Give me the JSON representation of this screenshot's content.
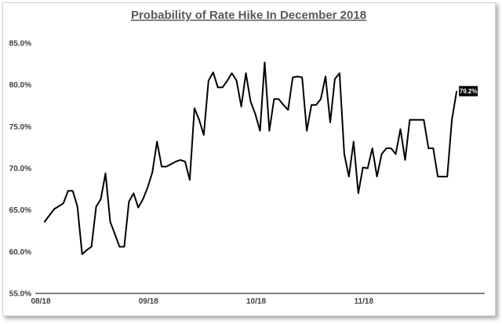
{
  "chart_data": {
    "type": "line",
    "title": "Probability of Rate Hike In December 2018",
    "xlabel": "",
    "ylabel": "",
    "ylim": [
      55.0,
      85.0
    ],
    "yticks": [
      "55.0%",
      "60.0%",
      "65.0%",
      "70.0%",
      "75.0%",
      "80.0%",
      "85.0%"
    ],
    "ytick_values": [
      55,
      60,
      65,
      70,
      75,
      80,
      85
    ],
    "xticks": [
      "08/18",
      "09/18",
      "10/18",
      "11/18"
    ],
    "xtick_positions": [
      0,
      23,
      46,
      69
    ],
    "xlim": [
      0,
      93
    ],
    "grid": false,
    "legend": "none",
    "series": [
      {
        "color": "#000000",
        "x": [
          2,
          4,
          6,
          7,
          8,
          9,
          10,
          11,
          12,
          13,
          14,
          15,
          16,
          17,
          18,
          19,
          20,
          21,
          22,
          23,
          24,
          25,
          26,
          27,
          28,
          29,
          30,
          31,
          32,
          33,
          34,
          35,
          36,
          37,
          38,
          39,
          40,
          41,
          42,
          43,
          44,
          45,
          46,
          47,
          48,
          49,
          50,
          51,
          52,
          53,
          54,
          55,
          56,
          57,
          58,
          59,
          60,
          61,
          62,
          63,
          64,
          65,
          66,
          67,
          68,
          69,
          70,
          71,
          72,
          73,
          74,
          75,
          76,
          77,
          78,
          79,
          80,
          81,
          82,
          83,
          84,
          85,
          86,
          87,
          88,
          89,
          90
        ],
        "y": [
          63.6,
          65.1,
          65.8,
          67.3,
          67.3,
          65.4,
          59.7,
          60.2,
          60.6,
          65.4,
          66.3,
          69.4,
          63.6,
          62.1,
          60.6,
          60.6,
          66.0,
          67.0,
          65.3,
          66.3,
          67.7,
          69.5,
          73.2,
          70.2,
          70.2,
          70.5,
          70.8,
          71.0,
          70.8,
          68.6,
          77.2,
          75.8,
          74.0,
          80.5,
          81.5,
          79.7,
          79.7,
          80.5,
          81.4,
          80.5,
          77.4,
          81.4,
          78.0,
          76.5,
          74.5,
          82.7,
          74.5,
          78.3,
          78.3,
          77.6,
          77.0,
          80.9,
          81.0,
          80.9,
          74.5,
          77.6,
          77.6,
          78.3,
          81.0,
          75.5,
          80.7,
          81.4,
          71.7,
          69.0,
          73.2,
          67.0,
          70.1,
          70.0,
          72.4,
          69.0,
          71.7,
          72.4,
          72.4,
          71.7,
          74.7,
          71.0,
          75.8,
          75.8,
          75.8,
          75.8,
          72.4,
          72.4,
          69.0,
          69.0,
          69.0,
          75.8,
          79.2
        ]
      }
    ],
    "end_label": "79.2%"
  }
}
